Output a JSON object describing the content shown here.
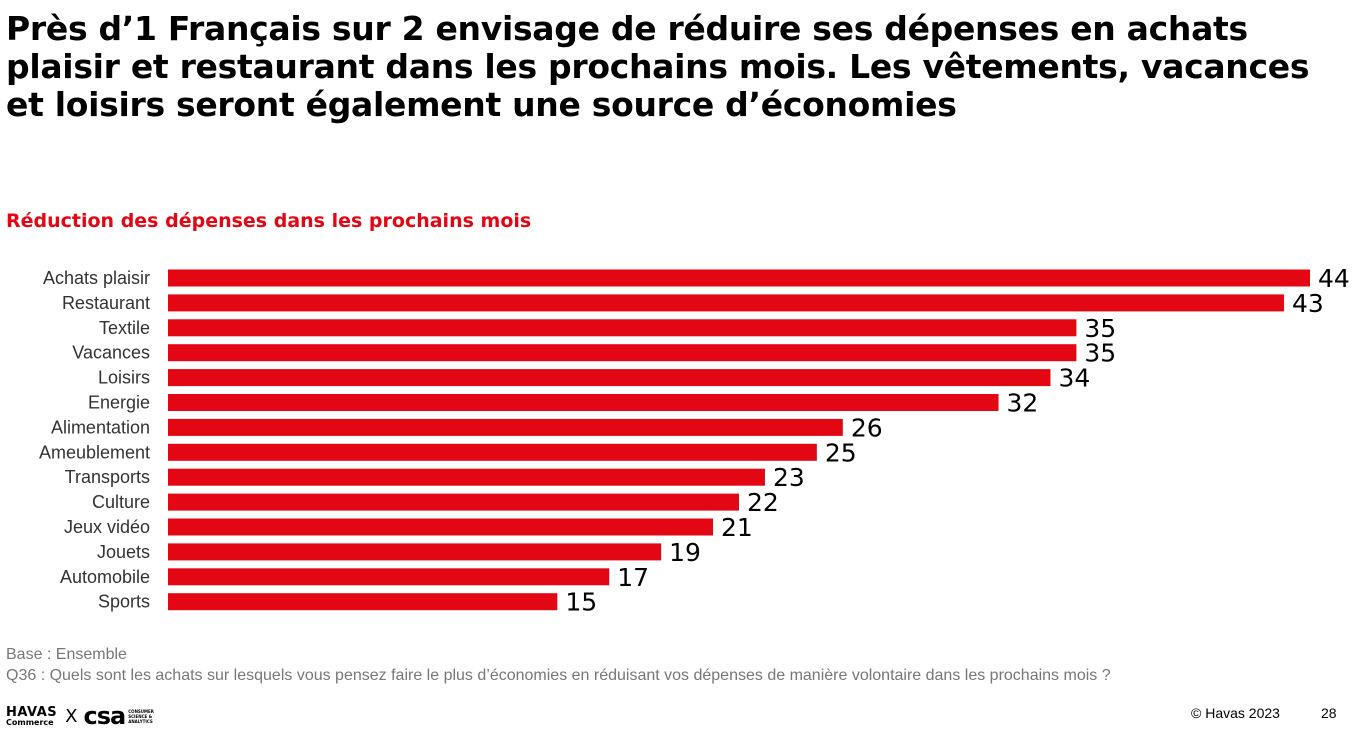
{
  "headline": "Près d’1 Français sur 2 envisage de réduire ses dépenses en achats plaisir et restaurant dans les prochains mois. Les vêtements, vacances et loisirs seront également une source d’économies",
  "chart_data": {
    "type": "bar",
    "orientation": "horizontal",
    "title": "Réduction des dépenses dans les prochains mois",
    "categories": [
      "Achats plaisir",
      "Restaurant",
      "Textile",
      "Vacances",
      "Loisirs",
      "Energie",
      "Alimentation",
      "Ameublement",
      "Transports",
      "Culture",
      "Jeux vidéo",
      "Jouets",
      "Automobile",
      "Sports"
    ],
    "values": [
      44,
      43,
      35,
      35,
      34,
      32,
      26,
      25,
      23,
      22,
      21,
      19,
      17,
      15
    ],
    "xlim": [
      0,
      44
    ],
    "bar_color": "#e30613",
    "grid": false,
    "legend": "none"
  },
  "footer": {
    "base": "Base : Ensemble",
    "question": "Q36 : Quels sont les achats sur lesquels vous pensez faire le plus d’économies en réduisant vos dépenses de manière volontaire dans les prochains mois ?",
    "logo_havas": "HAVAS",
    "logo_havas_sub": "Commerce",
    "logo_x": "X",
    "logo_csa": "csa",
    "logo_csa_sub": "CONSUMER SCIENCE & ANALYTICS",
    "copyright": "© Havas 2023",
    "page_number": "28"
  }
}
